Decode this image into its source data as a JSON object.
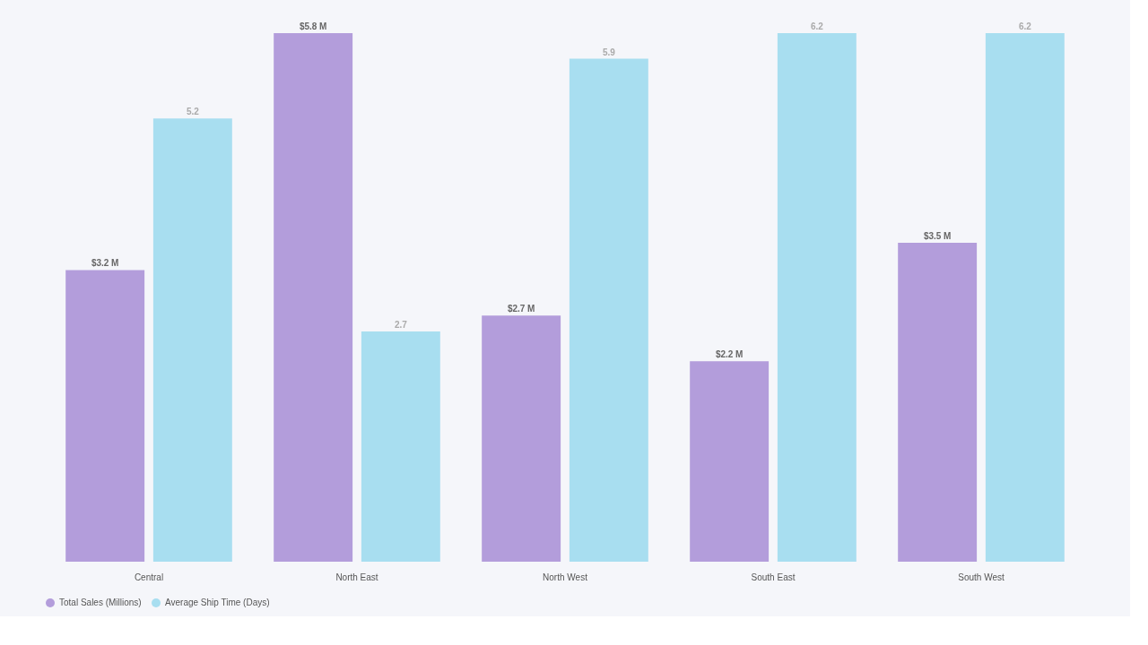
{
  "chart_data": {
    "type": "bar",
    "categories": [
      "Central",
      "North East",
      "North West",
      "South East",
      "South West"
    ],
    "series": [
      {
        "name": "Total Sales (Millions)",
        "color": "#b39ddb",
        "values": [
          3.2,
          5.8,
          2.7,
          2.2,
          3.5
        ],
        "value_labels": [
          "$3.2 M",
          "$5.8 M",
          "$2.7 M",
          "$2.2 M",
          "$3.5 M"
        ]
      },
      {
        "name": "Average Ship Time (Days)",
        "color": "#a8def0",
        "axis": "y2",
        "values": [
          5.2,
          2.7,
          5.9,
          6.2,
          6.2
        ],
        "value_labels": [
          "5.2",
          "2.7",
          "5.9",
          "6.2",
          "6.2"
        ]
      }
    ],
    "tick_labels": "x",
    "legend": "bottom",
    "grid": false
  }
}
